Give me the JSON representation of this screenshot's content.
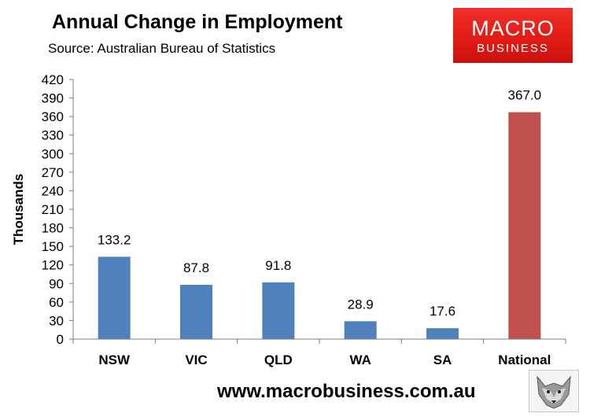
{
  "header": {
    "title": "Annual Change in Employment",
    "subtitle": "Source: Australian Bureau of Statistics"
  },
  "logo": {
    "line1": "MACRO",
    "line2": "BUSINESS"
  },
  "footer": {
    "website": "www.macrobusiness.com.au"
  },
  "colors": {
    "bar": "#4f81bd",
    "highlight_bar": "#c0504d",
    "logo_red": "#e21b16",
    "gridline": "#d9d9d9"
  },
  "chart_data": {
    "type": "bar",
    "title": "Annual Change in Employment",
    "subtitle": "Source: Australian Bureau of Statistics",
    "xlabel": "",
    "ylabel": "Thousands",
    "categories": [
      "NSW",
      "VIC",
      "QLD",
      "WA",
      "SA",
      "National"
    ],
    "values": [
      133.2,
      87.8,
      91.8,
      28.9,
      17.6,
      367.0
    ],
    "value_labels": [
      "133.2",
      "87.8",
      "91.8",
      "28.9",
      "17.6",
      "367.0"
    ],
    "highlight_category": "National",
    "ylim": [
      0,
      420
    ],
    "yticks": [
      0,
      30,
      60,
      90,
      120,
      150,
      180,
      210,
      240,
      270,
      300,
      330,
      360,
      390,
      420
    ],
    "grid": false,
    "legend": "none"
  }
}
